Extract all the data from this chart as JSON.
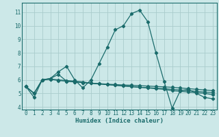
{
  "xlabel": "Humidex (Indice chaleur)",
  "bg_color": "#cce8e8",
  "grid_color": "#aacccc",
  "line_color": "#1a6b6b",
  "xlim": [
    -0.5,
    23.5
  ],
  "ylim": [
    3.8,
    11.7
  ],
  "yticks": [
    4,
    5,
    6,
    7,
    8,
    9,
    10,
    11
  ],
  "xticks": [
    0,
    1,
    2,
    3,
    4,
    5,
    6,
    7,
    8,
    9,
    10,
    11,
    12,
    13,
    14,
    15,
    16,
    17,
    18,
    19,
    20,
    21,
    22,
    23
  ],
  "line1_x": [
    0,
    1,
    2,
    3,
    4,
    5,
    6,
    7,
    8,
    9,
    10,
    11,
    12,
    13,
    14,
    15,
    16,
    17,
    18,
    19,
    20,
    21,
    22,
    23
  ],
  "line1_y": [
    5.5,
    4.7,
    6.0,
    6.1,
    6.6,
    7.0,
    6.0,
    5.4,
    6.0,
    7.2,
    8.4,
    9.7,
    10.0,
    10.9,
    11.15,
    10.3,
    8.0,
    5.9,
    3.9,
    5.2,
    5.3,
    5.0,
    4.7,
    4.6
  ],
  "line2_x": [
    0,
    1,
    2,
    3,
    4,
    5,
    6,
    7,
    8,
    9,
    10,
    11,
    12,
    13,
    14,
    15,
    16,
    17,
    18,
    19,
    20,
    21,
    22,
    23
  ],
  "line2_y": [
    5.5,
    5.0,
    6.0,
    6.05,
    6.0,
    5.95,
    5.9,
    5.85,
    5.75,
    5.7,
    5.65,
    5.6,
    5.55,
    5.5,
    5.45,
    5.4,
    5.35,
    5.3,
    5.2,
    5.15,
    5.1,
    5.05,
    5.0,
    4.9
  ],
  "line3_x": [
    0,
    1,
    2,
    3,
    4,
    5,
    6,
    7,
    8,
    9,
    10,
    11,
    12,
    13,
    14,
    15,
    16,
    17,
    18,
    19,
    20,
    21,
    22,
    23
  ],
  "line3_y": [
    5.5,
    5.0,
    6.0,
    6.1,
    6.4,
    5.9,
    5.85,
    5.8,
    5.75,
    5.72,
    5.68,
    5.65,
    5.62,
    5.6,
    5.57,
    5.54,
    5.51,
    5.48,
    5.45,
    5.4,
    5.35,
    5.3,
    5.25,
    5.2
  ],
  "line4_x": [
    0,
    1,
    2,
    3,
    4,
    5,
    6,
    7,
    8,
    9,
    10,
    11,
    12,
    13,
    14,
    15,
    16,
    17,
    18,
    19,
    20,
    21,
    22,
    23
  ],
  "line4_y": [
    5.5,
    5.0,
    6.0,
    6.05,
    5.95,
    5.9,
    5.85,
    5.8,
    5.75,
    5.7,
    5.65,
    5.6,
    5.55,
    5.5,
    5.45,
    5.42,
    5.38,
    5.35,
    5.3,
    5.25,
    5.2,
    5.15,
    5.1,
    5.05
  ]
}
